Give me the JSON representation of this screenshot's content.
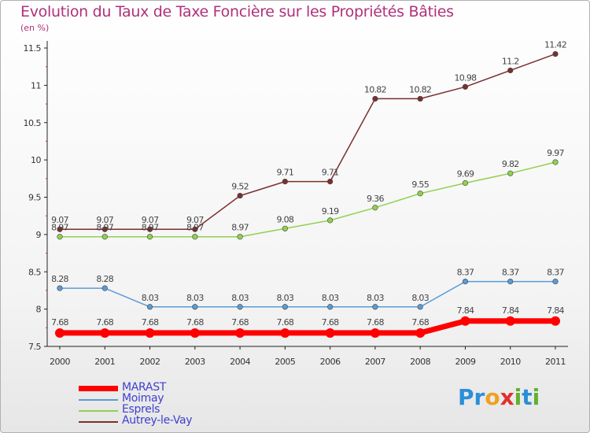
{
  "title": "Evolution du Taux de Taxe Foncière sur les Propriétés Bâties",
  "subtitle": "(en %)",
  "logo": {
    "text": "Proxiti",
    "letters": [
      "P",
      "r",
      "o",
      "x",
      "i",
      "t",
      "i"
    ],
    "colors": [
      "#2a8fd8",
      "#2a8fd8",
      "#f0a020",
      "#e03030",
      "#60b030",
      "#2a8fd8",
      "#60b030"
    ]
  },
  "chart_data": {
    "type": "line",
    "categories": [
      "2000",
      "2001",
      "2002",
      "2003",
      "2004",
      "2005",
      "2006",
      "2007",
      "2008",
      "2009",
      "2010",
      "2011"
    ],
    "ylim": [
      7.5,
      11.5
    ],
    "yticks": [
      7.5,
      8,
      8.5,
      9,
      9.5,
      10,
      10.5,
      11,
      11.5
    ],
    "ytick_labels": [
      "7.5",
      "8",
      "8.5",
      "9",
      "9.5",
      "10",
      "10.5",
      "11",
      "11.5"
    ],
    "grid": false,
    "legend_position": "bottom-left",
    "series": [
      {
        "name": "MARAST",
        "color": "#ff0000",
        "emphasis": true,
        "values": [
          7.68,
          7.68,
          7.68,
          7.68,
          7.68,
          7.68,
          7.68,
          7.68,
          7.68,
          7.84,
          7.84,
          7.84
        ],
        "labels": [
          "7.68",
          "7.68",
          "7.68",
          "7.68",
          "7.68",
          "7.68",
          "7.68",
          "7.68",
          "7.68",
          "7.84",
          "7.84",
          "7.84"
        ]
      },
      {
        "name": "Moimay",
        "color": "#5b9bd5",
        "emphasis": false,
        "values": [
          8.28,
          8.28,
          8.03,
          8.03,
          8.03,
          8.03,
          8.03,
          8.03,
          8.03,
          8.37,
          8.37,
          8.37
        ],
        "labels": [
          "8.28",
          "8.28",
          "8.03",
          "8.03",
          "8.03",
          "8.03",
          "8.03",
          "8.03",
          "8.03",
          "8.37",
          "8.37",
          "8.37"
        ]
      },
      {
        "name": "Esprels",
        "color": "#92d050",
        "emphasis": false,
        "values": [
          8.97,
          8.97,
          8.97,
          8.97,
          8.97,
          9.08,
          9.19,
          9.36,
          9.55,
          9.69,
          9.82,
          9.97
        ],
        "labels": [
          "8.97",
          "8.97",
          "8.97",
          "8.97",
          "8.97",
          "9.08",
          "9.19",
          "9.36",
          "9.55",
          "9.69",
          "9.82",
          "9.97"
        ]
      },
      {
        "name": "Autrey-le-Vay",
        "color": "#7b2f2f",
        "emphasis": false,
        "values": [
          9.07,
          9.07,
          9.07,
          9.07,
          9.52,
          9.71,
          9.71,
          10.82,
          10.82,
          10.98,
          11.2,
          11.42
        ],
        "labels": [
          "9.07",
          "9.07",
          "9.07",
          "9.07",
          "9.52",
          "9.71",
          "9.71",
          "10.82",
          "10.82",
          "10.98",
          "11.2",
          "11.42"
        ]
      }
    ]
  }
}
